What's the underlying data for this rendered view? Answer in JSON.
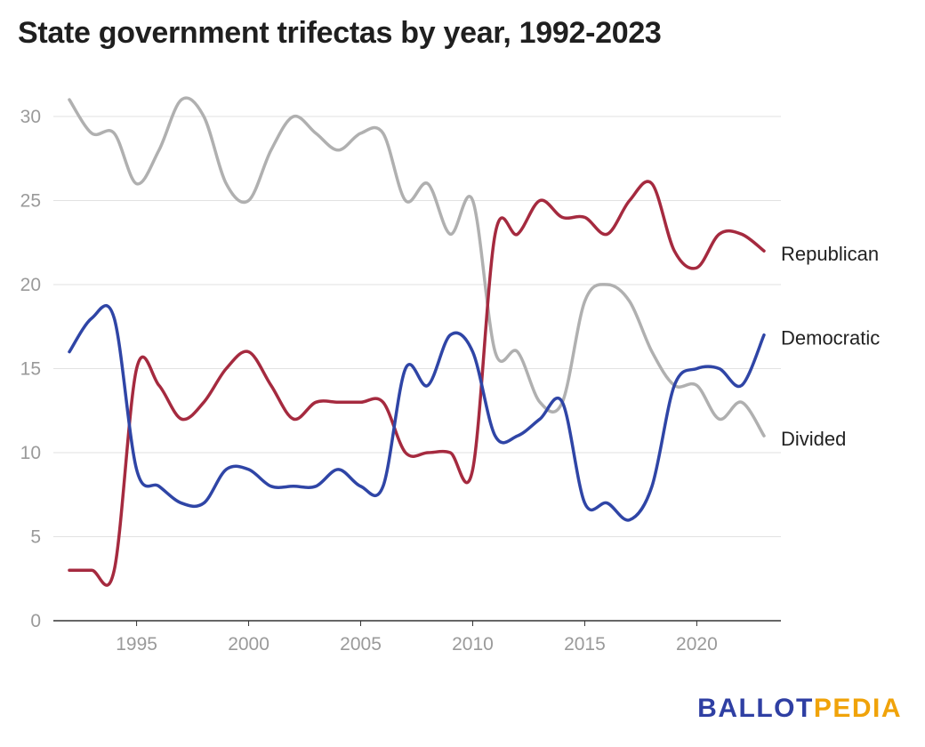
{
  "title": "State government trifectas by year, 1992-2023",
  "logo": {
    "part1": "BALLOT",
    "part2": "PEDIA"
  },
  "chart_data": {
    "type": "line",
    "title": "State government trifectas by year, 1992-2023",
    "xlabel": "",
    "ylabel": "",
    "xlim": [
      1992,
      2023
    ],
    "ylim": [
      0,
      30
    ],
    "x_ticks": [
      1995,
      2000,
      2005,
      2010,
      2015,
      2020
    ],
    "y_ticks": [
      0,
      5,
      10,
      15,
      20,
      25,
      30
    ],
    "grid": true,
    "legend": "inline-right",
    "x": [
      1992,
      1993,
      1994,
      1995,
      1996,
      1997,
      1998,
      1999,
      2000,
      2001,
      2002,
      2003,
      2004,
      2005,
      2006,
      2007,
      2008,
      2009,
      2010,
      2011,
      2012,
      2013,
      2014,
      2015,
      2016,
      2017,
      2018,
      2019,
      2020,
      2021,
      2022,
      2023
    ],
    "series": [
      {
        "name": "Republican",
        "color": "#a52a3f",
        "values": [
          3,
          3,
          3,
          15,
          14,
          12,
          13,
          15,
          16,
          14,
          12,
          13,
          13,
          13,
          13,
          10,
          10,
          10,
          9,
          23,
          23,
          25,
          24,
          24,
          23,
          25,
          26,
          22,
          21,
          23,
          23,
          22
        ]
      },
      {
        "name": "Democratic",
        "color": "#2f45a6",
        "values": [
          16,
          18,
          18,
          9,
          8,
          7,
          7,
          9,
          9,
          8,
          8,
          8,
          9,
          8,
          8,
          15,
          14,
          17,
          16,
          11,
          11,
          12,
          13,
          7,
          7,
          6,
          8,
          14,
          15,
          15,
          14,
          17
        ]
      },
      {
        "name": "Divided",
        "color": "#b0b0b0",
        "values": [
          31,
          29,
          29,
          26,
          28,
          31,
          30,
          26,
          25,
          28,
          30,
          29,
          28,
          29,
          29,
          25,
          26,
          23,
          25,
          16,
          16,
          13,
          13,
          19,
          20,
          19,
          16,
          14,
          14,
          12,
          13,
          11
        ]
      }
    ]
  }
}
